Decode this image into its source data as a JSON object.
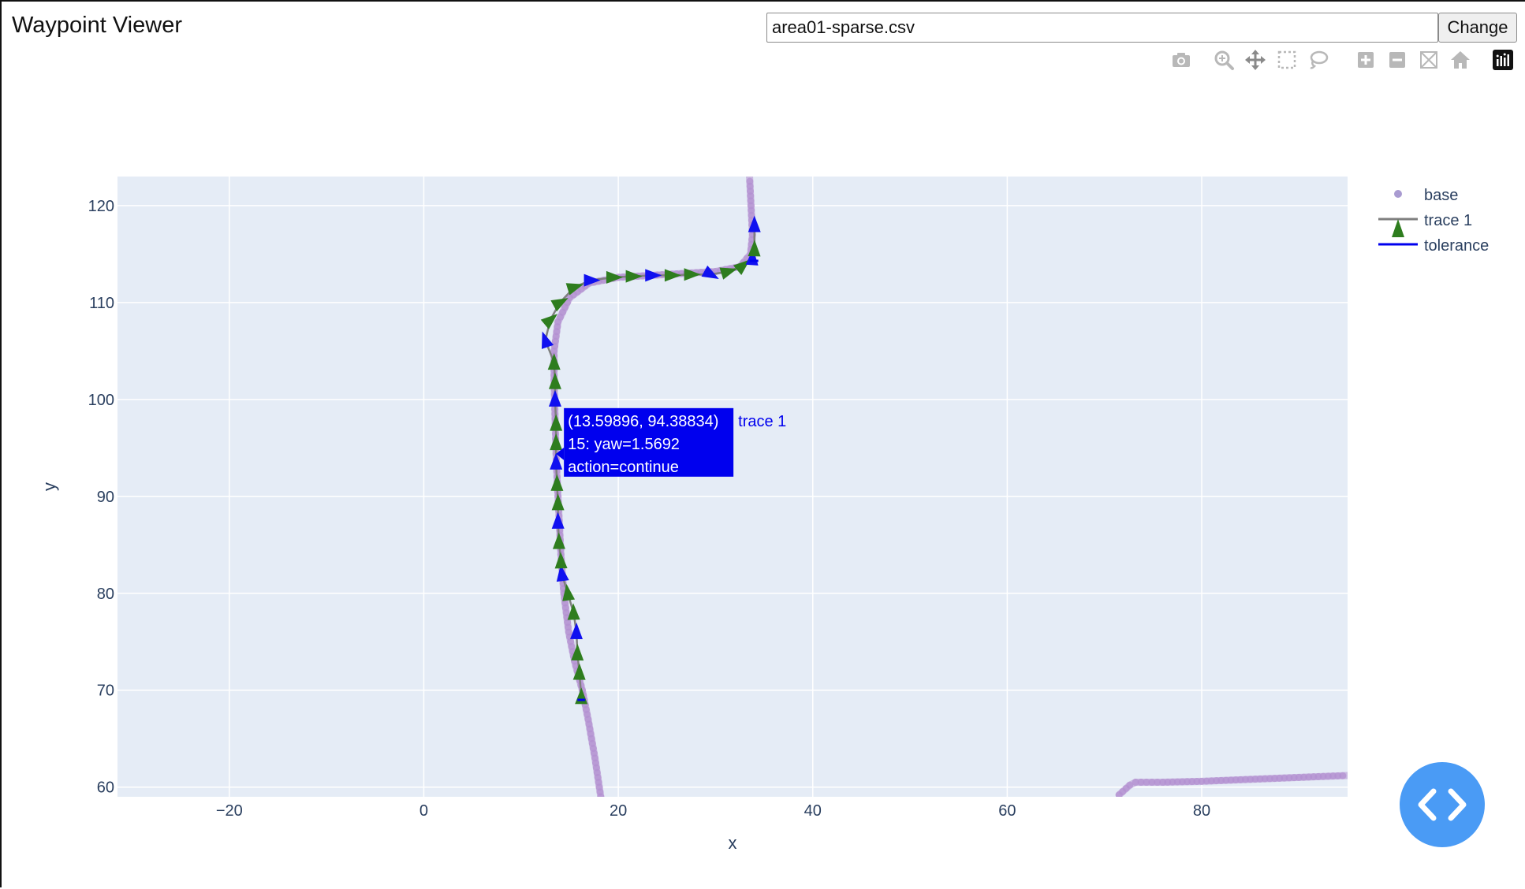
{
  "app": {
    "title": "Waypoint Viewer",
    "file_value": "area01-sparse.csv",
    "change_label": "Change"
  },
  "modebar": [
    {
      "name": "camera-icon",
      "label": "Download plot as a png"
    },
    {
      "name": "zoom-icon",
      "label": "Zoom"
    },
    {
      "name": "pan-icon",
      "label": "Pan"
    },
    {
      "name": "box-select-icon",
      "label": "Box Select"
    },
    {
      "name": "lasso-select-icon",
      "label": "Lasso Select"
    },
    {
      "name": "zoom-in-icon",
      "label": "Zoom in"
    },
    {
      "name": "zoom-out-icon",
      "label": "Zoom out"
    },
    {
      "name": "autoscale-icon",
      "label": "Autoscale"
    },
    {
      "name": "reset-axes-icon",
      "label": "Reset axes"
    },
    {
      "name": "plotly-logo-icon",
      "label": "Produced with Plotly"
    }
  ],
  "colors": {
    "plot_bg": "#e5ecf6",
    "grid": "#ffffff",
    "base": "#b28fd0",
    "base_legend": "#a99bd1",
    "trace_line": "#7f7f7f",
    "arrow_green": "#2e7d1e",
    "arrow_blue": "#1010f0",
    "tolerance": "#0000ee",
    "axis_text": "#2a3f5f",
    "hover_bg": "#0000ee"
  },
  "chart_data": {
    "type": "scatter",
    "title": "",
    "xlabel": "x",
    "ylabel": "y",
    "xlim": [
      -31.5,
      95
    ],
    "ylim": [
      59,
      123
    ],
    "x_ticks": [
      -20,
      0,
      20,
      40,
      60,
      80
    ],
    "y_ticks": [
      60,
      70,
      80,
      90,
      100,
      110,
      120
    ],
    "x_tick_labels": [
      "−20",
      "0",
      "20",
      "40",
      "60",
      "80"
    ],
    "y_tick_labels": [
      "60",
      "70",
      "80",
      "90",
      "100",
      "110",
      "120"
    ],
    "grid": true,
    "legend": {
      "position": "top-right",
      "entries": [
        {
          "name": "base",
          "symbol": "marker"
        },
        {
          "name": "trace 1",
          "symbol": "line-triangle"
        },
        {
          "name": "tolerance",
          "symbol": "line"
        }
      ]
    },
    "series": [
      {
        "name": "base",
        "mode": "markers",
        "segments": [
          [
            [
              18.2,
              59
            ],
            [
              17.6,
              63
            ],
            [
              16.9,
              67
            ],
            [
              16.3,
              70
            ],
            [
              15.5,
              73
            ],
            [
              14.9,
              76
            ],
            [
              14.4,
              80
            ],
            [
              14.1,
              84
            ],
            [
              13.9,
              88
            ],
            [
              13.7,
              92
            ],
            [
              13.6,
              94.4
            ],
            [
              13.5,
              98
            ],
            [
              13.4,
              102
            ],
            [
              13.4,
              105
            ],
            [
              13.8,
              108
            ],
            [
              15.0,
              110.5
            ],
            [
              17.0,
              112.0
            ],
            [
              20.0,
              112.6
            ],
            [
              25.0,
              112.9
            ],
            [
              30.0,
              113.2
            ],
            [
              32.5,
              113.7
            ],
            [
              33.6,
              115.0
            ],
            [
              33.8,
              117
            ],
            [
              33.7,
              119
            ],
            [
              33.6,
              121
            ],
            [
              33.5,
              123
            ]
          ],
          [
            [
              71.5,
              59.2
            ],
            [
              72.6,
              60.2
            ],
            [
              73.2,
              60.5
            ],
            [
              76.0,
              60.5
            ],
            [
              80.0,
              60.6
            ],
            [
              85.0,
              60.8
            ],
            [
              90.0,
              61.0
            ],
            [
              95.0,
              61.2
            ]
          ]
        ]
      },
      {
        "name": "trace 1",
        "mode": "lines+markers",
        "points": [
          {
            "x": 16.2,
            "y": 69.3,
            "yaw": 1.56,
            "color": "green"
          },
          {
            "x": 16.0,
            "y": 71.8,
            "yaw": 1.56,
            "color": "green"
          },
          {
            "x": 15.8,
            "y": 73.8,
            "yaw": 1.56,
            "color": "green"
          },
          {
            "x": 15.7,
            "y": 76.0,
            "yaw": 1.56,
            "color": "blue"
          },
          {
            "x": 15.4,
            "y": 78.0,
            "yaw": 1.6,
            "color": "green"
          },
          {
            "x": 14.8,
            "y": 80.0,
            "yaw": 1.7,
            "color": "green"
          },
          {
            "x": 14.2,
            "y": 82.0,
            "yaw": 1.7,
            "color": "blue"
          },
          {
            "x": 14.1,
            "y": 83.3,
            "yaw": 1.6,
            "color": "green"
          },
          {
            "x": 13.9,
            "y": 85.3,
            "yaw": 1.58,
            "color": "green"
          },
          {
            "x": 13.8,
            "y": 87.4,
            "yaw": 1.58,
            "color": "blue"
          },
          {
            "x": 13.8,
            "y": 89.3,
            "yaw": 1.57,
            "color": "green"
          },
          {
            "x": 13.7,
            "y": 91.3,
            "yaw": 1.57,
            "color": "green"
          },
          {
            "x": 13.6,
            "y": 93.5,
            "yaw": 1.57,
            "color": "blue"
          },
          {
            "x": 13.6,
            "y": 95.5,
            "yaw": 1.57,
            "color": "green"
          },
          {
            "x": 13.6,
            "y": 97.5,
            "yaw": 1.57,
            "color": "green"
          },
          {
            "x": 13.5,
            "y": 100.0,
            "yaw": 1.57,
            "color": "blue"
          },
          {
            "x": 13.5,
            "y": 101.8,
            "yaw": 1.57,
            "color": "green"
          },
          {
            "x": 13.4,
            "y": 103.8,
            "yaw": 1.57,
            "color": "green"
          },
          {
            "x": 12.5,
            "y": 106.1,
            "yaw": 1.9,
            "color": "blue"
          },
          {
            "x": 13.0,
            "y": 108.2,
            "yaw": 0.7,
            "color": "green"
          },
          {
            "x": 14.0,
            "y": 110.0,
            "yaw": 0.5,
            "color": "green"
          },
          {
            "x": 15.5,
            "y": 111.6,
            "yaw": 0.3,
            "color": "green"
          },
          {
            "x": 17.2,
            "y": 112.3,
            "yaw": 0.0,
            "color": "blue"
          },
          {
            "x": 19.5,
            "y": 112.6,
            "yaw": 0.0,
            "color": "green"
          },
          {
            "x": 21.5,
            "y": 112.7,
            "yaw": 0.0,
            "color": "green"
          },
          {
            "x": 23.5,
            "y": 112.8,
            "yaw": 0.0,
            "color": "blue"
          },
          {
            "x": 25.5,
            "y": 112.8,
            "yaw": 0.0,
            "color": "green"
          },
          {
            "x": 27.5,
            "y": 112.9,
            "yaw": 0.0,
            "color": "green"
          },
          {
            "x": 29.5,
            "y": 112.9,
            "yaw": -0.5,
            "color": "blue"
          },
          {
            "x": 31.3,
            "y": 113.2,
            "yaw": 0.3,
            "color": "green"
          },
          {
            "x": 32.8,
            "y": 113.8,
            "yaw": 0.7,
            "color": "green"
          },
          {
            "x": 33.8,
            "y": 114.6,
            "yaw": 1.5,
            "color": "blue"
          },
          {
            "x": 34.0,
            "y": 115.5,
            "yaw": 1.55,
            "color": "green"
          },
          {
            "x": 34.0,
            "y": 118.0,
            "yaw": 1.57,
            "color": "blue"
          }
        ]
      },
      {
        "name": "tolerance",
        "mode": "lines",
        "segments": [
          [
            [
              15.8,
              69.0
            ],
            [
              16.6,
              69.0
            ]
          ],
          [
            [
              33.5,
              114.3
            ],
            [
              34.4,
              114.3
            ]
          ]
        ]
      }
    ],
    "annotations": [],
    "hover": {
      "x": 13.59896,
      "y": 94.38834,
      "lines": [
        "(13.59896, 94.38834)",
        "  15: yaw=1.5692",
        "action=continue"
      ],
      "trace_name": "trace 1"
    }
  }
}
